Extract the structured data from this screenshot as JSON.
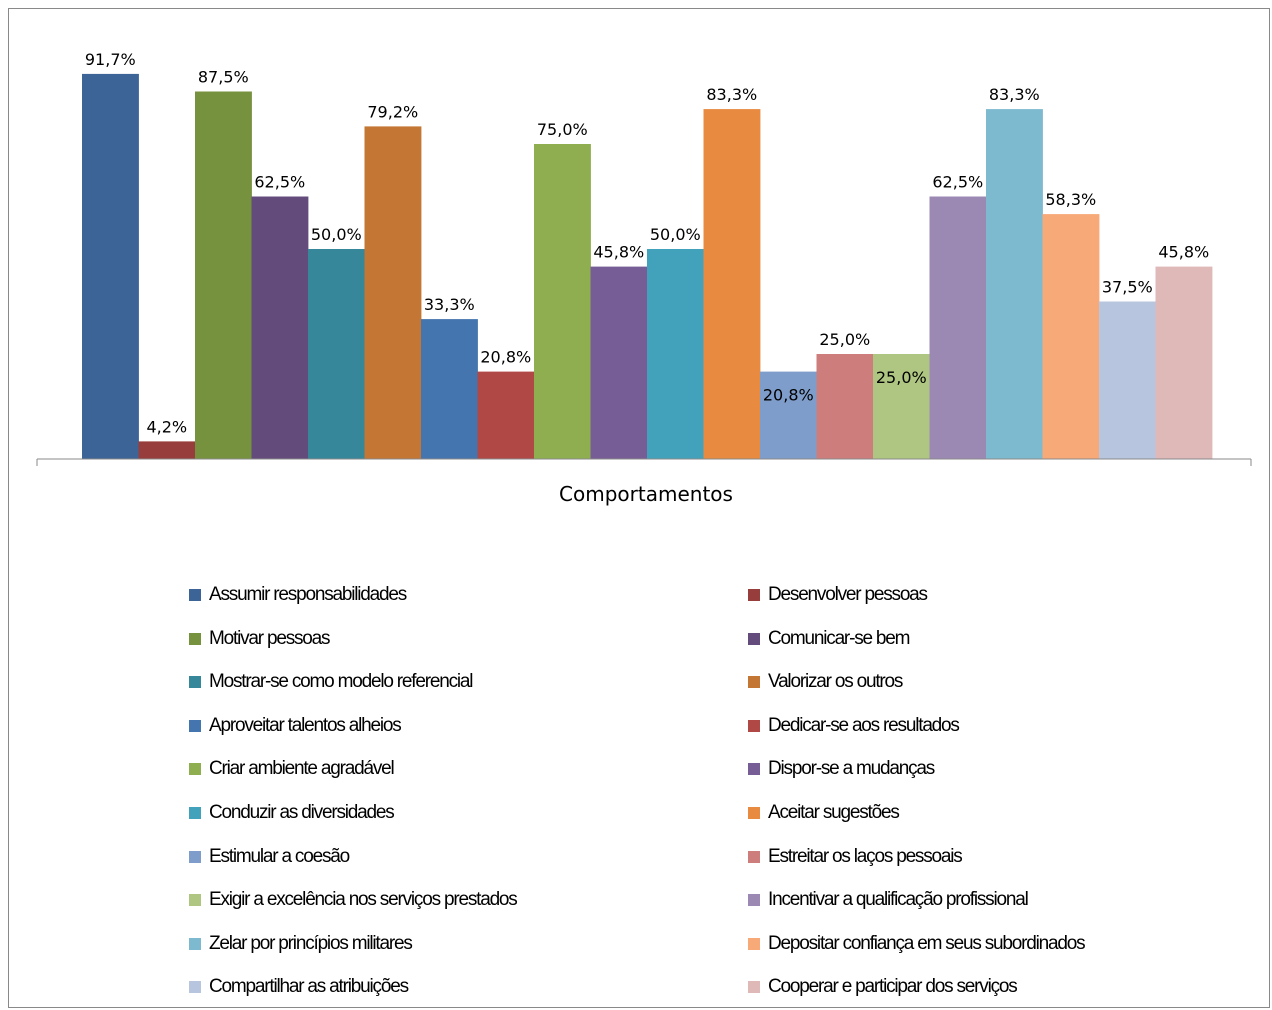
{
  "chart_data": {
    "type": "bar",
    "title": "",
    "xlabel": "Comportamentos",
    "ylabel": "",
    "ylim": [
      0,
      100
    ],
    "grid": false,
    "legend_position": "bottom",
    "categories": [
      "Comportamentos"
    ],
    "series": [
      {
        "name": "Assumir responsabilidades",
        "values": [
          91.7
        ],
        "label": "91,7%",
        "color": "#3C6496"
      },
      {
        "name": "Desenvolver pessoas",
        "values": [
          4.2
        ],
        "label": "4,2%",
        "color": "#973D3B"
      },
      {
        "name": "Motivar pessoas",
        "values": [
          87.5
        ],
        "label": "87,5%",
        "color": "#77923E"
      },
      {
        "name": "Comunicar-se bem",
        "values": [
          62.5
        ],
        "label": "62,5%",
        "color": "#634C7B"
      },
      {
        "name": "Mostrar-se como modelo referencial",
        "values": [
          50.0
        ],
        "label": "50,0%",
        "color": "#37879A"
      },
      {
        "name": "Valorizar os outros",
        "values": [
          79.2
        ],
        "label": "79,2%",
        "color": "#C47634"
      },
      {
        "name": "Aproveitar talentos alheios",
        "values": [
          33.3
        ],
        "label": "33,3%",
        "color": "#4575AE"
      },
      {
        "name": "Dedicar-se aos resultados",
        "values": [
          20.8
        ],
        "label": "20,8%",
        "color": "#B04946"
      },
      {
        "name": "Criar ambiente agradável",
        "values": [
          75.0
        ],
        "label": "75,0%",
        "color": "#8FAE50"
      },
      {
        "name": "Dispor-se a mudanças",
        "values": [
          45.8
        ],
        "label": "45,8%",
        "color": "#765D95"
      },
      {
        "name": "Conduzir as diversidades",
        "values": [
          50.0
        ],
        "label": "50,0%",
        "color": "#43A2BB"
      },
      {
        "name": "Aceitar sugestões",
        "values": [
          83.3
        ],
        "label": "83,3%",
        "color": "#E88B40"
      },
      {
        "name": "Estimular a coesão",
        "values": [
          20.8
        ],
        "label": "20,8%",
        "color": "#7F9DCB"
      },
      {
        "name": "Estreitar os laços pessoais",
        "values": [
          25.0
        ],
        "label": "25,0%",
        "color": "#CD7D7B"
      },
      {
        "name": "Exigir a excelência nos serviços prestados",
        "values": [
          25.0
        ],
        "label": "25,0%",
        "color": "#AFC682"
      },
      {
        "name": "Incentivar a qualificação profissional",
        "values": [
          62.5
        ],
        "label": "62,5%",
        "color": "#9B89B4"
      },
      {
        "name": "Zelar por princípios militares",
        "values": [
          83.3
        ],
        "label": "83,3%",
        "color": "#7DBACF"
      },
      {
        "name": "Depositar confiança em seus subordinados",
        "values": [
          58.3
        ],
        "label": "58,3%",
        "color": "#F8A978"
      },
      {
        "name": "Compartilhar as atribuições",
        "values": [
          37.5
        ],
        "label": "37,5%",
        "color": "#B8C5DE"
      },
      {
        "name": "Cooperar e participar dos serviços",
        "values": [
          45.8
        ],
        "label": "45,8%",
        "color": "#DFB8B8"
      }
    ]
  }
}
